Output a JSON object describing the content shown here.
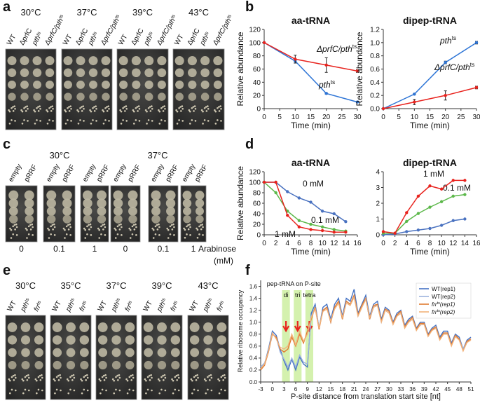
{
  "panel_labels": [
    "a",
    "b",
    "c",
    "d",
    "e",
    "f"
  ],
  "plates_a": {
    "groups": [
      {
        "temp": "30°C",
        "columns": [
          "WT",
          "ΔprfC",
          [
            "pth",
            "ts"
          ],
          [
            "ΔprfC/pth",
            "ts"
          ]
        ]
      },
      {
        "temp": "37°C",
        "columns": [
          "WT",
          "ΔprfC",
          [
            "pth",
            "ts"
          ],
          [
            "ΔprfC/pth",
            "ts"
          ]
        ]
      },
      {
        "temp": "39°C",
        "columns": [
          "WT",
          "ΔprfC",
          [
            "pth",
            "ts"
          ],
          [
            "ΔprfC/pth",
            "ts"
          ]
        ]
      },
      {
        "temp": "43°C",
        "columns": [
          "WT",
          "ΔprfC",
          [
            "pth",
            "ts"
          ],
          [
            "ΔprfC/pth",
            "ts"
          ]
        ]
      }
    ]
  },
  "plates_c": {
    "groups": [
      {
        "temp": "30°C",
        "plates": [
          {
            "columns": [
              "empty",
              "pRRF"
            ],
            "arabinose": 0
          },
          {
            "columns": [
              "empty",
              "pRRF"
            ],
            "arabinose": 0.1
          },
          {
            "columns": [
              "empty",
              "pRRF"
            ],
            "arabinose": 1
          }
        ]
      },
      {
        "temp": "37°C",
        "plates": [
          {
            "columns": [
              "empty",
              "pRRF"
            ],
            "arabinose": 0
          },
          {
            "columns": [
              "empty",
              "pRRF"
            ],
            "arabinose": 0.1
          },
          {
            "columns": [
              "empty",
              "pRRF"
            ],
            "arabinose": 1
          }
        ]
      }
    ],
    "x_label": "Arabinose",
    "x_unit": "(mM)"
  },
  "plates_e": {
    "groups": [
      {
        "temp": "30°C",
        "columns": [
          "WT",
          [
            "pth",
            "ts"
          ],
          [
            "frr",
            "ts"
          ]
        ]
      },
      {
        "temp": "35°C",
        "columns": [
          "WT",
          [
            "pth",
            "ts"
          ],
          [
            "frr",
            "ts"
          ]
        ]
      },
      {
        "temp": "37°C",
        "columns": [
          "WT",
          [
            "pth",
            "ts"
          ],
          [
            "frr",
            "ts"
          ]
        ]
      },
      {
        "temp": "39°C",
        "columns": [
          "WT",
          [
            "pth",
            "ts"
          ],
          [
            "frr",
            "ts"
          ]
        ]
      },
      {
        "temp": "43°C",
        "columns": [
          "WT",
          [
            "pth",
            "ts"
          ],
          [
            "frr",
            "ts"
          ]
        ]
      }
    ]
  },
  "chart_data": [
    {
      "type": "line",
      "title": "aa-tRNA",
      "xlabel": "Time (min)",
      "ylabel": "Relative abundance",
      "markers": true,
      "x": [
        0,
        10,
        20,
        30
      ],
      "xlim": [
        0,
        30
      ],
      "xticks": [
        0,
        5,
        10,
        15,
        20,
        25,
        30
      ],
      "ylim": [
        0,
        120
      ],
      "yticks": [
        0,
        20,
        40,
        60,
        80,
        100,
        120
      ],
      "series": [
        {
          "name": [
            "pth",
            "ts"
          ],
          "color": "#2e75d6",
          "values": [
            100,
            72,
            23,
            10
          ],
          "errors": [
            0,
            3,
            1,
            1
          ]
        },
        {
          "name": [
            "ΔprfC/pth",
            "ts"
          ],
          "color": "#e8231e",
          "values": [
            100,
            75,
            66,
            57
          ],
          "errors": [
            0,
            6,
            11,
            2
          ]
        }
      ]
    },
    {
      "type": "line",
      "title": "dipep-tRNA",
      "xlabel": "Time (min)",
      "ylabel": "Relative abundance",
      "markers": true,
      "x": [
        0,
        10,
        20,
        30
      ],
      "xlim": [
        0,
        30
      ],
      "xticks": [
        0,
        5,
        10,
        15,
        20,
        25,
        30
      ],
      "ylim": [
        0,
        1.2
      ],
      "yticks": [
        {
          "value": 0,
          "label": "0.0"
        },
        0.2,
        0.4,
        0.6,
        0.8,
        {
          "value": 1,
          "label": "1.0"
        },
        1.2
      ],
      "series": [
        {
          "name": [
            "pth",
            "ts"
          ],
          "color": "#2e75d6",
          "values": [
            0,
            0.22,
            0.7,
            1.0
          ],
          "errors": [
            0,
            0.01,
            0.02,
            0.02
          ]
        },
        {
          "name": [
            "ΔprfC/pth",
            "ts"
          ],
          "color": "#e8231e",
          "values": [
            0,
            0.1,
            0.2,
            0.32
          ],
          "errors": [
            0,
            0.04,
            0.07,
            0.02
          ]
        }
      ]
    },
    {
      "type": "line",
      "title": "aa-tRNA",
      "xlabel": "Time (min)",
      "ylabel": "Relative abundance",
      "markers": true,
      "x": [
        0,
        2,
        4,
        6,
        8,
        10,
        12,
        14
      ],
      "xlim": [
        0,
        16
      ],
      "xticks": [
        0,
        2,
        4,
        6,
        8,
        10,
        12,
        14,
        16
      ],
      "ylim": [
        0,
        120
      ],
      "yticks": [
        0,
        20,
        40,
        60,
        80,
        100,
        120
      ],
      "series": [
        {
          "name": "0 mM",
          "color": "#4a72c0",
          "values": [
            100,
            100,
            82,
            70,
            62,
            45,
            40,
            25
          ]
        },
        {
          "name": "0.1 mM",
          "color": "#5cb84a",
          "values": [
            100,
            80,
            45,
            27,
            20,
            15,
            10,
            7
          ]
        },
        {
          "name": "1 mM",
          "color": "#e8231e",
          "values": [
            100,
            100,
            37,
            15,
            10,
            8,
            5,
            5
          ]
        }
      ]
    },
    {
      "type": "line",
      "title": "dipep-tRNA",
      "xlabel": "Time (min)",
      "markers": true,
      "x": [
        0,
        2,
        4,
        6,
        8,
        10,
        12,
        14
      ],
      "xlim": [
        0,
        16
      ],
      "xticks": [
        0,
        2,
        4,
        6,
        8,
        10,
        12,
        14,
        16
      ],
      "ylim": [
        0,
        4
      ],
      "yticks": [
        0,
        1,
        2,
        3,
        4
      ],
      "series": [
        {
          "color": "#4a72c0",
          "values": [
            0,
            0.05,
            0.2,
            0.3,
            0.4,
            0.6,
            0.9,
            1.0
          ]
        },
        {
          "name": "0.1 mM",
          "color": "#5cb84a",
          "values": [
            0.1,
            0.1,
            0.85,
            1.35,
            1.75,
            2.1,
            2.45,
            2.55
          ]
        },
        {
          "name": "1 mM",
          "color": "#e8231e",
          "values": [
            0.2,
            0.1,
            1.4,
            2.45,
            3.1,
            2.9,
            3.45,
            3.45
          ]
        }
      ]
    },
    {
      "type": "line",
      "xlabel": "P-site distance from translation start site [nt]",
      "ylabel": "Relative ribosome occupancy",
      "markers": false,
      "legend": true,
      "legend_position": "upper right",
      "annotation": "pep-tRNA on P-site",
      "highlights": [
        {
          "label": "di",
          "range": [
            2.5,
            4.5
          ]
        },
        {
          "label": "tri",
          "range": [
            5.5,
            7.5
          ]
        },
        {
          "label": "tetra",
          "range": [
            8.5,
            10.5
          ]
        }
      ],
      "x": [
        -3,
        -2,
        -1,
        0,
        1,
        2,
        3,
        4,
        5,
        6,
        7,
        8,
        9,
        10,
        11,
        12,
        13,
        14,
        15,
        16,
        17,
        18,
        19,
        20,
        21,
        22,
        23,
        24,
        25,
        26,
        27,
        28,
        29,
        30,
        31,
        32,
        33,
        34,
        35,
        36,
        37,
        38,
        39,
        40,
        41,
        42,
        43,
        44,
        45,
        46,
        47,
        48,
        49,
        50,
        51
      ],
      "xlim": [
        -3,
        51
      ],
      "xticks": [
        -3,
        0,
        3,
        6,
        9,
        12,
        15,
        18,
        21,
        24,
        27,
        30,
        33,
        36,
        39,
        42,
        45,
        48,
        51
      ],
      "ylim": [
        0,
        1.7
      ],
      "yticks": [
        {
          "value": 0,
          "label": "0.0"
        },
        0.2,
        0.4,
        0.6,
        0.8,
        {
          "value": 1,
          "label": "1.0"
        },
        1.2,
        1.4,
        1.6
      ],
      "series": [
        {
          "name": "WT(rep1)",
          "color": "#4472c4",
          "values": [
            0.22,
            0.3,
            0.55,
            0.85,
            0.78,
            0.55,
            0.35,
            0.2,
            0.38,
            0.2,
            0.42,
            0.3,
            0.25,
            1.15,
            1.3,
            0.9,
            1.25,
            1.3,
            1.05,
            1.3,
            1.4,
            1.1,
            1.4,
            1.35,
            1.55,
            1.15,
            1.3,
            1.45,
            1.1,
            1.3,
            1.35,
            1.05,
            1.25,
            1.2,
            1.0,
            1.15,
            1.2,
            0.95,
            1.05,
            1.1,
            0.9,
            1.0,
            1.0,
            0.8,
            0.9,
            0.95,
            0.75,
            0.85,
            0.85,
            0.65,
            0.8,
            0.75,
            0.55,
            0.7,
            0.75
          ]
        },
        {
          "name": "WT(rep2)",
          "color": "#9db3dd",
          "values": [
            0.25,
            0.32,
            0.5,
            0.8,
            0.75,
            0.5,
            0.38,
            0.25,
            0.4,
            0.25,
            0.45,
            0.33,
            0.3,
            1.1,
            1.25,
            0.92,
            1.2,
            1.25,
            1.0,
            1.25,
            1.35,
            1.05,
            1.35,
            1.3,
            1.45,
            1.1,
            1.25,
            1.4,
            1.05,
            1.25,
            1.3,
            1.0,
            1.2,
            1.15,
            0.98,
            1.1,
            1.15,
            0.92,
            1.0,
            1.05,
            0.88,
            0.95,
            0.98,
            0.78,
            0.88,
            0.9,
            0.72,
            0.82,
            0.82,
            0.62,
            0.78,
            0.72,
            0.55,
            0.68,
            0.72
          ]
        },
        {
          "name": [
            "frr",
            "ts",
            "(rep1)"
          ],
          "color": "#e07b30",
          "values": [
            0.2,
            0.28,
            0.5,
            0.8,
            0.75,
            0.55,
            0.5,
            0.55,
            0.75,
            0.6,
            0.8,
            0.65,
            0.85,
            1.05,
            1.25,
            0.88,
            1.2,
            1.25,
            1.0,
            1.25,
            1.35,
            1.05,
            1.35,
            1.3,
            1.45,
            1.12,
            1.28,
            1.4,
            1.05,
            1.28,
            1.3,
            1.02,
            1.22,
            1.18,
            0.98,
            1.12,
            1.18,
            0.92,
            1.02,
            1.08,
            0.88,
            0.98,
            0.98,
            0.78,
            0.88,
            0.92,
            0.72,
            0.82,
            0.82,
            0.62,
            0.78,
            0.72,
            0.52,
            0.68,
            0.72
          ]
        },
        {
          "name": [
            "frr",
            "ts",
            "(rep2)"
          ],
          "color": "#f2b27a",
          "values": [
            0.22,
            0.3,
            0.52,
            0.82,
            0.72,
            0.58,
            0.55,
            0.6,
            0.8,
            0.62,
            0.85,
            0.68,
            0.8,
            1.08,
            1.22,
            0.9,
            1.18,
            1.22,
            1.02,
            1.22,
            1.32,
            1.08,
            1.32,
            1.28,
            1.42,
            1.1,
            1.25,
            1.38,
            1.08,
            1.25,
            1.28,
            1.0,
            1.2,
            1.15,
            0.96,
            1.1,
            1.15,
            0.9,
            1.0,
            1.05,
            0.86,
            0.96,
            0.96,
            0.76,
            0.86,
            0.9,
            0.7,
            0.8,
            0.8,
            0.6,
            0.76,
            0.7,
            0.52,
            0.66,
            0.7
          ]
        }
      ]
    }
  ]
}
